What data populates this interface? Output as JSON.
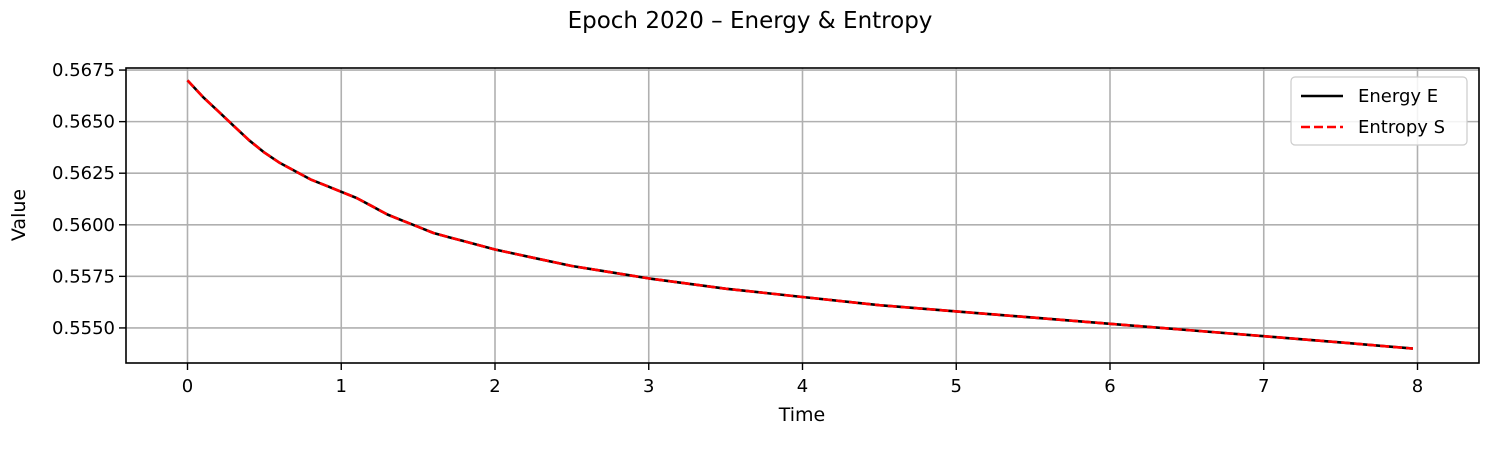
{
  "chart_data": {
    "type": "line",
    "title": "Epoch 2020 – Energy & Entropy",
    "xlabel": "Time",
    "ylabel": "Value",
    "xlim": [
      -0.4,
      8.4
    ],
    "ylim": [
      0.5533,
      0.5676
    ],
    "xticks": [
      0,
      1,
      2,
      3,
      4,
      5,
      6,
      7,
      8
    ],
    "xtick_labels": [
      "0",
      "1",
      "2",
      "3",
      "4",
      "5",
      "6",
      "7",
      "8"
    ],
    "yticks": [
      0.555,
      0.5575,
      0.56,
      0.5625,
      0.565,
      0.5675
    ],
    "ytick_labels": [
      "0.5550",
      "0.5575",
      "0.5600",
      "0.5625",
      "0.5650",
      "0.5675"
    ],
    "grid": true,
    "legend_position": "top-right",
    "x": [
      0,
      0.1,
      0.2,
      0.3,
      0.4,
      0.5,
      0.6,
      0.7,
      0.8,
      0.9,
      1.0,
      1.1,
      1.2,
      1.3,
      1.4,
      1.5,
      1.6,
      1.7,
      1.8,
      1.9,
      2.0,
      2.25,
      2.5,
      2.75,
      3.0,
      3.5,
      4.0,
      4.5,
      5.0,
      5.5,
      6.0,
      6.5,
      7.0,
      7.5,
      7.97
    ],
    "series": [
      {
        "name": "Energy E",
        "color": "#000000",
        "dash": "solid",
        "values": [
          0.567,
          0.5662,
          0.5655,
          0.5648,
          0.5641,
          0.5635,
          0.563,
          0.5626,
          0.5622,
          0.5619,
          0.5616,
          0.5613,
          0.5609,
          0.5605,
          0.5602,
          0.5599,
          0.5596,
          0.5594,
          0.5592,
          0.559,
          0.5588,
          0.5584,
          0.558,
          0.5577,
          0.5574,
          0.5569,
          0.5565,
          0.5561,
          0.5558,
          0.5555,
          0.5552,
          0.5549,
          0.5546,
          0.5543,
          0.554
        ]
      },
      {
        "name": "Entropy S",
        "color": "#ff0000",
        "dash": "dashed",
        "values": [
          0.567,
          0.5662,
          0.5655,
          0.5648,
          0.5641,
          0.5635,
          0.563,
          0.5626,
          0.5622,
          0.5619,
          0.5616,
          0.5613,
          0.5609,
          0.5605,
          0.5602,
          0.5599,
          0.5596,
          0.5594,
          0.5592,
          0.559,
          0.5588,
          0.5584,
          0.558,
          0.5577,
          0.5574,
          0.5569,
          0.5565,
          0.5561,
          0.5558,
          0.5555,
          0.5552,
          0.5549,
          0.5546,
          0.5543,
          0.554
        ]
      }
    ]
  }
}
